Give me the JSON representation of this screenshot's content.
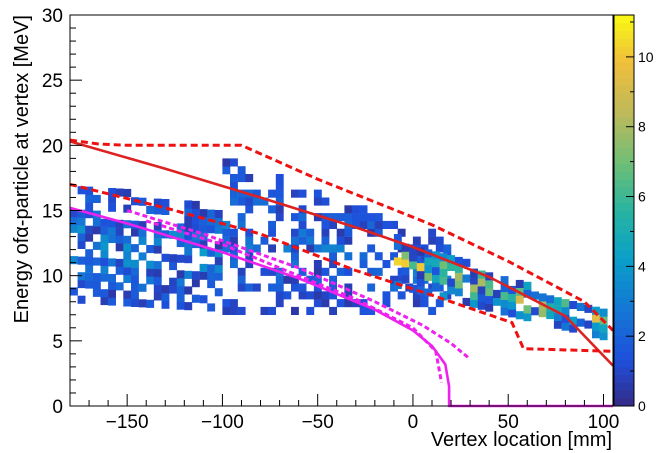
{
  "chart_data": {
    "type": "heatmap",
    "xlabel": "Vertex location [mm]",
    "ylabel": "Energy ofα-particle at vertex [MeV]",
    "xlim": [
      -180,
      105
    ],
    "ylim": [
      0,
      30
    ],
    "x_ticks": [
      -150,
      -100,
      -50,
      0,
      50,
      100
    ],
    "x_tick_labels": [
      "−150",
      "−100",
      "−50",
      "0",
      "50",
      "100"
    ],
    "y_ticks": [
      0,
      5,
      10,
      15,
      20,
      25,
      30
    ],
    "y_tick_labels": [
      "0",
      "5",
      "10",
      "15",
      "20",
      "25",
      "30"
    ],
    "colorbar": {
      "min": 0,
      "max": 11.2,
      "ticks": [
        0,
        2,
        4,
        6,
        8,
        10
      ],
      "tick_labels": [
        "0",
        "2",
        "4",
        "6",
        "8",
        "10"
      ]
    },
    "cell_size": {
      "dx": 4,
      "dy": 0.6
    },
    "bands": [
      {
        "x_start": -180,
        "x_end": -100,
        "lower": [
          -180,
          7.9,
          -100,
          7.2
        ],
        "upper": [
          -180,
          16.8,
          -100,
          14.8
        ],
        "peak": 4,
        "density": 0.65
      },
      {
        "x_start": -100,
        "x_end": 20,
        "lower": [
          -100,
          7.0,
          20,
          7.0
        ],
        "upper": [
          -100,
          18.8,
          20,
          12.6
        ],
        "peak": 3,
        "density": 0.45
      },
      {
        "x_start": -10,
        "x_end": 100,
        "lower": [
          -10,
          9.0,
          100,
          5.0
        ],
        "upper": [
          -10,
          12.6,
          100,
          6.8
        ],
        "peak": 10.8,
        "density": 0.8
      }
    ],
    "series": [
      {
        "type": "line",
        "style": "solid",
        "color": "#dd2222",
        "points": [
          [
            -180,
            20.3
          ],
          [
            -130,
            18.2
          ],
          [
            -80,
            16.0
          ],
          [
            -30,
            13.7
          ],
          [
            0,
            12.2
          ],
          [
            40,
            9.9
          ],
          [
            80,
            6.9
          ],
          [
            105,
            3.1
          ]
        ]
      },
      {
        "type": "line",
        "style": "dashed",
        "color": "#ee1111",
        "points": [
          [
            -180,
            20.4
          ],
          [
            -165,
            20.1
          ],
          [
            -150,
            20.0
          ],
          [
            -90,
            20.0
          ],
          [
            -50,
            17.4
          ],
          [
            10,
            13.9
          ],
          [
            50,
            11.1
          ],
          [
            90,
            8.0
          ],
          [
            105,
            5.8
          ]
        ]
      },
      {
        "type": "line",
        "style": "dashed",
        "color": "#ee1111",
        "points": [
          [
            -180,
            17.0
          ],
          [
            -130,
            15.2
          ],
          [
            -80,
            13.2
          ],
          [
            -30,
            10.4
          ],
          [
            10,
            8.5
          ],
          [
            40,
            7.0
          ],
          [
            52,
            6.4
          ],
          [
            58,
            4.4
          ],
          [
            105,
            4.2
          ]
        ]
      },
      {
        "type": "line",
        "style": "solid",
        "color": "#ee22ee",
        "points": [
          [
            -180,
            15.2
          ],
          [
            -150,
            14.0
          ],
          [
            -100,
            11.8
          ],
          [
            -60,
            9.8
          ],
          [
            -20,
            7.4
          ],
          [
            0,
            5.8
          ],
          [
            10,
            4.6
          ],
          [
            17,
            3.2
          ],
          [
            19,
            1.5
          ],
          [
            19,
            0
          ],
          [
            105,
            0
          ]
        ]
      },
      {
        "type": "line",
        "style": "dashed",
        "color": "#ee22ee",
        "points": [
          [
            -150,
            15.0
          ],
          [
            -110,
            13.2
          ],
          [
            -60,
            10.6
          ],
          [
            -20,
            8.0
          ],
          [
            5,
            6.2
          ],
          [
            20,
            4.8
          ],
          [
            30,
            3.6
          ]
        ]
      },
      {
        "type": "line",
        "style": "dashed",
        "color": "#ee22ee",
        "points": [
          [
            -140,
            14.2
          ],
          [
            -100,
            12.4
          ],
          [
            -60,
            10.0
          ],
          [
            -30,
            8.2
          ],
          [
            0,
            6.0
          ],
          [
            12,
            4.2
          ],
          [
            15,
            1.8
          ]
        ]
      }
    ]
  }
}
